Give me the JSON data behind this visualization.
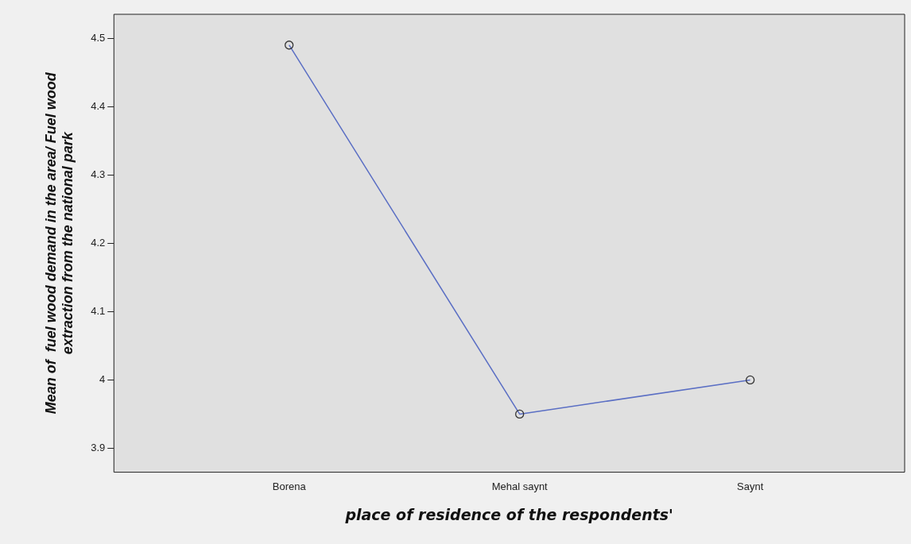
{
  "chart_data": {
    "type": "line",
    "xlabel": "place of residence of the respondents'",
    "ylabel": "Mean of  fuel wood demand in the area/ Fuel wood\nextraction from the national park",
    "categories": [
      "Borena",
      "Mehal saynt",
      "Saynt"
    ],
    "series": [
      {
        "color": "#5b6fc4",
        "values": [
          4.49,
          3.95,
          4.0
        ]
      }
    ],
    "ylim": [
      3.865,
      4.535
    ],
    "yticks": [
      3.9,
      4.0,
      4.1,
      4.2,
      4.3,
      4.4,
      4.5
    ],
    "grid": false,
    "legend": false,
    "marker": "circle",
    "line_style": "solid"
  }
}
